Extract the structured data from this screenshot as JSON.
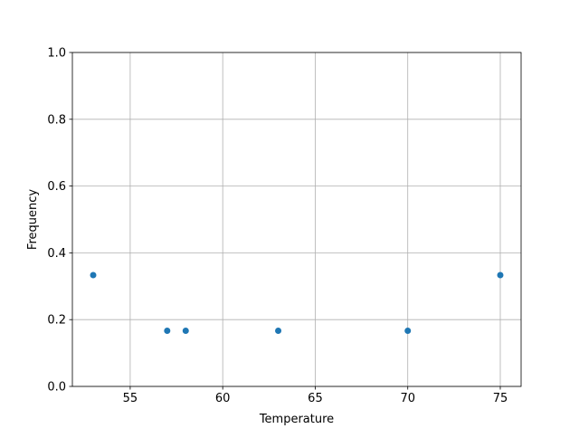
{
  "chart_data": {
    "type": "scatter",
    "title": "",
    "xlabel": "Temperature",
    "ylabel": "Frequency",
    "xlim": [
      51.875,
      76.125
    ],
    "ylim": [
      0,
      1
    ],
    "grid": true,
    "xticks": [
      55,
      60,
      65,
      70,
      75
    ],
    "yticks": [
      0.0,
      0.2,
      0.4,
      0.6,
      0.8,
      1.0
    ],
    "ytick_labels": [
      "0.0",
      "0.2",
      "0.4",
      "0.6",
      "0.8",
      "1.0"
    ],
    "x": [
      53,
      57,
      58,
      63,
      70,
      75
    ],
    "y": [
      0.3333,
      0.1667,
      0.1667,
      0.1667,
      0.1667,
      0.3333
    ],
    "color": "#1f77b4"
  }
}
